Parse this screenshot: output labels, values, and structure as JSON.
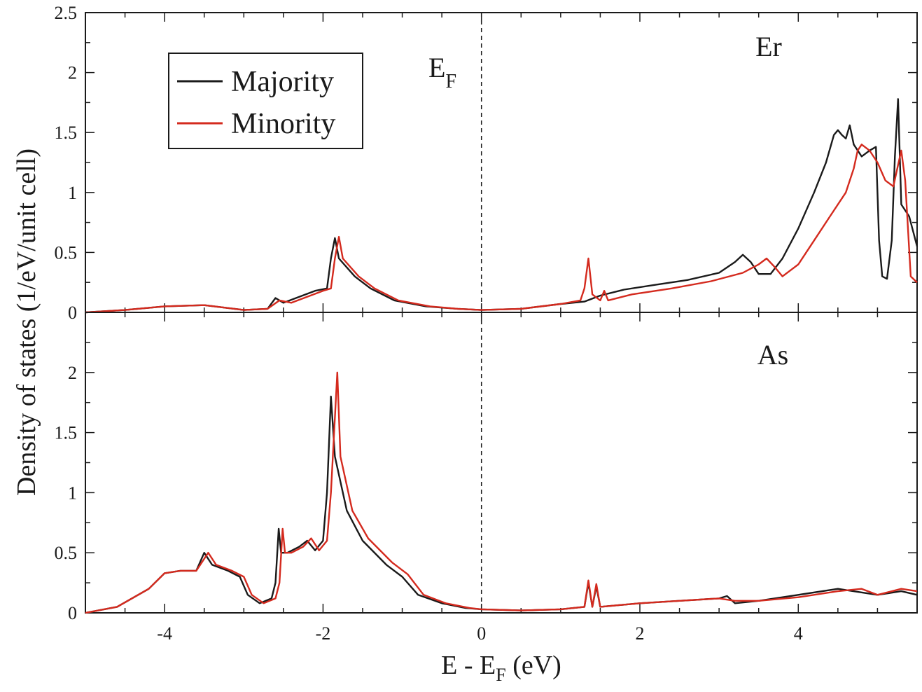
{
  "chart_data": {
    "type": "line",
    "xlabel": "E - E",
    "xlabel_sub": "F",
    "xlabel_unit": " (eV)",
    "ylabel": "Density of states (1/eV/unit cell)",
    "xlim": [
      -5,
      5.5
    ],
    "x_ticks": [
      "-4",
      "-2",
      "0",
      "2",
      "4"
    ],
    "fermi_label": "E",
    "fermi_label_sub": "F",
    "legend": {
      "placement": "top-left",
      "entries": [
        {
          "name": "Majority",
          "color": "#1a1a1a"
        },
        {
          "name": "Minority",
          "color": "#d42a1e"
        }
      ]
    },
    "panels": [
      {
        "label": "Er",
        "ylim": [
          0,
          2.5
        ],
        "y_ticks": [
          "0",
          "0.5",
          "1",
          "1.5",
          "2",
          "2.5"
        ],
        "series": [
          {
            "name": "Majority",
            "color": "#1a1a1a",
            "points": [
              [
                -5.0,
                0.0
              ],
              [
                -4.5,
                0.02
              ],
              [
                -4.0,
                0.05
              ],
              [
                -3.5,
                0.06
              ],
              [
                -3.0,
                0.02
              ],
              [
                -2.7,
                0.03
              ],
              [
                -2.6,
                0.12
              ],
              [
                -2.5,
                0.08
              ],
              [
                -2.3,
                0.13
              ],
              [
                -2.1,
                0.18
              ],
              [
                -1.95,
                0.2
              ],
              [
                -1.9,
                0.45
              ],
              [
                -1.85,
                0.62
              ],
              [
                -1.8,
                0.45
              ],
              [
                -1.6,
                0.3
              ],
              [
                -1.4,
                0.2
              ],
              [
                -1.1,
                0.1
              ],
              [
                -0.7,
                0.05
              ],
              [
                -0.3,
                0.03
              ],
              [
                0.0,
                0.02
              ],
              [
                0.5,
                0.03
              ],
              [
                1.0,
                0.07
              ],
              [
                1.3,
                0.09
              ],
              [
                1.5,
                0.14
              ],
              [
                1.8,
                0.19
              ],
              [
                2.2,
                0.23
              ],
              [
                2.6,
                0.27
              ],
              [
                3.0,
                0.33
              ],
              [
                3.2,
                0.42
              ],
              [
                3.3,
                0.48
              ],
              [
                3.4,
                0.42
              ],
              [
                3.5,
                0.32
              ],
              [
                3.65,
                0.32
              ],
              [
                3.8,
                0.45
              ],
              [
                4.0,
                0.7
              ],
              [
                4.2,
                1.0
              ],
              [
                4.35,
                1.25
              ],
              [
                4.45,
                1.48
              ],
              [
                4.5,
                1.52
              ],
              [
                4.55,
                1.48
              ],
              [
                4.6,
                1.45
              ],
              [
                4.65,
                1.56
              ],
              [
                4.7,
                1.4
              ],
              [
                4.8,
                1.3
              ],
              [
                4.9,
                1.35
              ],
              [
                4.98,
                1.38
              ],
              [
                5.02,
                0.6
              ],
              [
                5.06,
                0.3
              ],
              [
                5.12,
                0.28
              ],
              [
                5.18,
                0.6
              ],
              [
                5.22,
                1.3
              ],
              [
                5.26,
                1.78
              ],
              [
                5.3,
                0.9
              ],
              [
                5.4,
                0.8
              ],
              [
                5.5,
                0.55
              ]
            ]
          },
          {
            "name": "Minority",
            "color": "#d42a1e",
            "points": [
              [
                -5.0,
                0.0
              ],
              [
                -4.5,
                0.02
              ],
              [
                -4.0,
                0.05
              ],
              [
                -3.5,
                0.06
              ],
              [
                -3.0,
                0.02
              ],
              [
                -2.7,
                0.03
              ],
              [
                -2.55,
                0.1
              ],
              [
                -2.4,
                0.08
              ],
              [
                -2.2,
                0.13
              ],
              [
                -2.0,
                0.18
              ],
              [
                -1.9,
                0.2
              ],
              [
                -1.85,
                0.45
              ],
              [
                -1.8,
                0.63
              ],
              [
                -1.75,
                0.45
              ],
              [
                -1.55,
                0.3
              ],
              [
                -1.35,
                0.2
              ],
              [
                -1.05,
                0.1
              ],
              [
                -0.65,
                0.05
              ],
              [
                -0.3,
                0.03
              ],
              [
                0.0,
                0.02
              ],
              [
                0.5,
                0.03
              ],
              [
                1.0,
                0.07
              ],
              [
                1.25,
                0.1
              ],
              [
                1.3,
                0.2
              ],
              [
                1.35,
                0.45
              ],
              [
                1.4,
                0.15
              ],
              [
                1.5,
                0.1
              ],
              [
                1.55,
                0.18
              ],
              [
                1.6,
                0.1
              ],
              [
                1.9,
                0.15
              ],
              [
                2.4,
                0.2
              ],
              [
                2.9,
                0.26
              ],
              [
                3.3,
                0.33
              ],
              [
                3.5,
                0.4
              ],
              [
                3.6,
                0.45
              ],
              [
                3.7,
                0.38
              ],
              [
                3.8,
                0.3
              ],
              [
                4.0,
                0.4
              ],
              [
                4.2,
                0.6
              ],
              [
                4.4,
                0.8
              ],
              [
                4.6,
                1.0
              ],
              [
                4.7,
                1.2
              ],
              [
                4.75,
                1.35
              ],
              [
                4.8,
                1.4
              ],
              [
                4.9,
                1.35
              ],
              [
                5.0,
                1.25
              ],
              [
                5.1,
                1.1
              ],
              [
                5.2,
                1.05
              ],
              [
                5.25,
                1.2
              ],
              [
                5.3,
                1.35
              ],
              [
                5.35,
                1.1
              ],
              [
                5.42,
                0.3
              ],
              [
                5.5,
                0.25
              ]
            ]
          }
        ]
      },
      {
        "label": "As",
        "ylim": [
          0,
          2.5
        ],
        "y_ticks": [
          "0",
          "0.5",
          "1",
          "1.5",
          "2"
        ],
        "series": [
          {
            "name": "Majority",
            "color": "#1a1a1a",
            "points": [
              [
                -5.0,
                0.0
              ],
              [
                -4.6,
                0.05
              ],
              [
                -4.2,
                0.2
              ],
              [
                -4.0,
                0.33
              ],
              [
                -3.8,
                0.35
              ],
              [
                -3.6,
                0.35
              ],
              [
                -3.5,
                0.5
              ],
              [
                -3.4,
                0.4
              ],
              [
                -3.2,
                0.35
              ],
              [
                -3.05,
                0.3
              ],
              [
                -2.95,
                0.15
              ],
              [
                -2.8,
                0.08
              ],
              [
                -2.65,
                0.12
              ],
              [
                -2.6,
                0.25
              ],
              [
                -2.56,
                0.7
              ],
              [
                -2.53,
                0.5
              ],
              [
                -2.45,
                0.5
              ],
              [
                -2.3,
                0.55
              ],
              [
                -2.2,
                0.6
              ],
              [
                -2.1,
                0.52
              ],
              [
                -2.0,
                0.6
              ],
              [
                -1.95,
                1.0
              ],
              [
                -1.9,
                1.8
              ],
              [
                -1.85,
                1.3
              ],
              [
                -1.7,
                0.85
              ],
              [
                -1.5,
                0.6
              ],
              [
                -1.2,
                0.4
              ],
              [
                -1.0,
                0.3
              ],
              [
                -0.8,
                0.15
              ],
              [
                -0.5,
                0.08
              ],
              [
                -0.2,
                0.04
              ],
              [
                0.0,
                0.03
              ],
              [
                0.5,
                0.02
              ],
              [
                1.0,
                0.03
              ],
              [
                1.3,
                0.05
              ],
              [
                1.35,
                0.25
              ],
              [
                1.4,
                0.05
              ],
              [
                1.45,
                0.22
              ],
              [
                1.5,
                0.05
              ],
              [
                2.0,
                0.08
              ],
              [
                2.5,
                0.1
              ],
              [
                3.0,
                0.12
              ],
              [
                3.1,
                0.14
              ],
              [
                3.2,
                0.08
              ],
              [
                3.5,
                0.1
              ],
              [
                4.0,
                0.15
              ],
              [
                4.5,
                0.2
              ],
              [
                5.0,
                0.15
              ],
              [
                5.3,
                0.18
              ],
              [
                5.5,
                0.15
              ]
            ]
          },
          {
            "name": "Minority",
            "color": "#d42a1e",
            "points": [
              [
                -5.0,
                0.0
              ],
              [
                -4.6,
                0.05
              ],
              [
                -4.2,
                0.2
              ],
              [
                -4.0,
                0.33
              ],
              [
                -3.8,
                0.35
              ],
              [
                -3.6,
                0.35
              ],
              [
                -3.45,
                0.5
              ],
              [
                -3.35,
                0.4
              ],
              [
                -3.15,
                0.35
              ],
              [
                -3.0,
                0.3
              ],
              [
                -2.9,
                0.15
              ],
              [
                -2.75,
                0.08
              ],
              [
                -2.6,
                0.12
              ],
              [
                -2.55,
                0.25
              ],
              [
                -2.51,
                0.7
              ],
              [
                -2.48,
                0.5
              ],
              [
                -2.4,
                0.5
              ],
              [
                -2.25,
                0.55
              ],
              [
                -2.15,
                0.62
              ],
              [
                -2.05,
                0.52
              ],
              [
                -1.95,
                0.6
              ],
              [
                -1.9,
                1.0
              ],
              [
                -1.82,
                2.0
              ],
              [
                -1.78,
                1.3
              ],
              [
                -1.63,
                0.85
              ],
              [
                -1.43,
                0.62
              ],
              [
                -1.13,
                0.42
              ],
              [
                -0.93,
                0.32
              ],
              [
                -0.73,
                0.15
              ],
              [
                -0.45,
                0.08
              ],
              [
                -0.15,
                0.04
              ],
              [
                0.0,
                0.03
              ],
              [
                0.5,
                0.02
              ],
              [
                1.0,
                0.03
              ],
              [
                1.3,
                0.05
              ],
              [
                1.35,
                0.27
              ],
              [
                1.4,
                0.05
              ],
              [
                1.45,
                0.24
              ],
              [
                1.5,
                0.05
              ],
              [
                2.0,
                0.08
              ],
              [
                2.5,
                0.1
              ],
              [
                3.0,
                0.12
              ],
              [
                3.2,
                0.1
              ],
              [
                3.5,
                0.1
              ],
              [
                4.0,
                0.13
              ],
              [
                4.5,
                0.18
              ],
              [
                4.8,
                0.2
              ],
              [
                5.0,
                0.15
              ],
              [
                5.3,
                0.2
              ],
              [
                5.5,
                0.18
              ]
            ]
          }
        ]
      }
    ]
  }
}
